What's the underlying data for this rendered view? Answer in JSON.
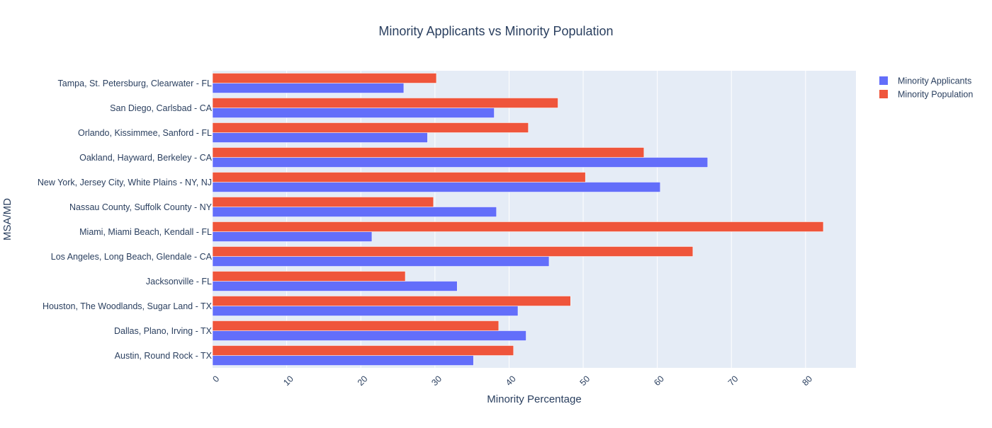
{
  "chart_data": {
    "type": "bar",
    "orientation": "horizontal",
    "title": "Minority Applicants vs Minority Population",
    "xlabel": "Minority Percentage",
    "ylabel": "MSA/MD",
    "xlim": [
      0,
      86.8
    ],
    "xticks": [
      0,
      10,
      20,
      30,
      40,
      50,
      60,
      70,
      80
    ],
    "grid": true,
    "legend_position": "top-right",
    "categories": [
      "Austin, Round Rock - TX",
      "Dallas, Plano, Irving - TX",
      "Houston, The Woodlands, Sugar Land - TX",
      "Jacksonville - FL",
      "Los Angeles, Long Beach, Glendale - CA",
      "Miami, Miami Beach, Kendall - FL",
      "Nassau County, Suffolk County - NY",
      "New York, Jersey City, White Plains - NY, NJ",
      "Oakland, Hayward, Berkeley - CA",
      "Orlando, Kissimmee, Sanford - FL",
      "San Diego, Carlsbad - CA",
      "Tampa, St. Petersburg, Clearwater - FL"
    ],
    "series": [
      {
        "name": "Minority Applicants",
        "color": "#636efa",
        "values": [
          35.2,
          42.3,
          41.2,
          33.0,
          45.4,
          21.5,
          38.3,
          60.4,
          66.8,
          29.0,
          38.0,
          25.8
        ]
      },
      {
        "name": "Minority Population",
        "color": "#ef553b",
        "values": [
          40.6,
          38.6,
          48.3,
          26.0,
          64.8,
          82.4,
          29.8,
          50.3,
          58.2,
          42.6,
          46.6,
          30.2
        ]
      }
    ]
  },
  "colors": {
    "plot_background": "#e5ecf6",
    "grid": "#ffffff",
    "text": "#2a3f5f"
  }
}
